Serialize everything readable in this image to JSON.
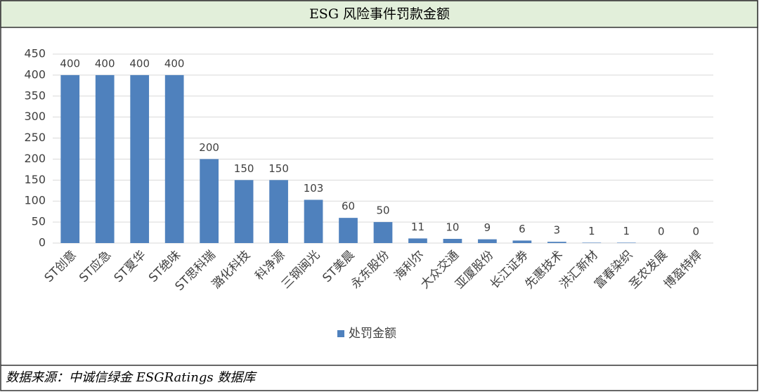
{
  "chart_data": {
    "type": "bar",
    "title": "ESG 风险事件罚款金额",
    "categories": [
      "ST创意",
      "ST应急",
      "ST夏华",
      "ST绝味",
      "ST思科瑞",
      "潞化科技",
      "科净源",
      "三钢闽光",
      "ST美晨",
      "永东股份",
      "海利尔",
      "大众交通",
      "亚厦股份",
      "长江证券",
      "先惠技术",
      "洪汇新材",
      "富春染织",
      "圣农发展",
      "博盈特焊"
    ],
    "series": [
      {
        "name": "处罚金额",
        "color": "#4f81bd",
        "values": [
          400,
          400,
          400,
          400,
          200,
          150,
          150,
          103,
          60,
          50,
          11,
          10,
          9,
          6,
          3,
          1,
          1,
          0,
          0
        ]
      }
    ],
    "ylim": [
      0,
      450
    ],
    "yticks": [
      0,
      50,
      100,
      150,
      200,
      250,
      300,
      350,
      400,
      450
    ],
    "grid": true,
    "legend": "bottom"
  },
  "source": "数据来源：中诚信绿金 ESGRatings 数据库"
}
